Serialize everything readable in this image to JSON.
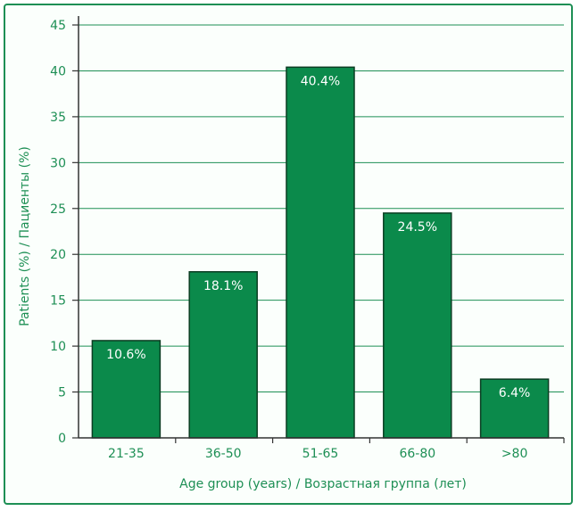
{
  "chart_data": {
    "type": "bar",
    "categories": [
      "21-35",
      "36-50",
      "51-65",
      "66-80",
      ">80"
    ],
    "values": [
      10.6,
      18.1,
      40.4,
      24.5,
      6.4
    ],
    "value_labels": [
      "10.6%",
      "18.1%",
      "40.4%",
      "24.5%",
      "6.4%"
    ],
    "xlabel": "Age group (years) / Возрастная группа (лет)",
    "ylabel": "Patients (%) / Пациенты (%)",
    "ylim": [
      0,
      45
    ],
    "yticks": [
      0,
      5,
      10,
      15,
      20,
      25,
      30,
      35,
      40,
      45
    ],
    "grid": true,
    "colors": {
      "bar": "#0b8a4b",
      "bar_stroke": "#0b3d22",
      "text": "#1e8f55",
      "grid": "#1e8f55",
      "frame": "#1e8f55"
    }
  }
}
